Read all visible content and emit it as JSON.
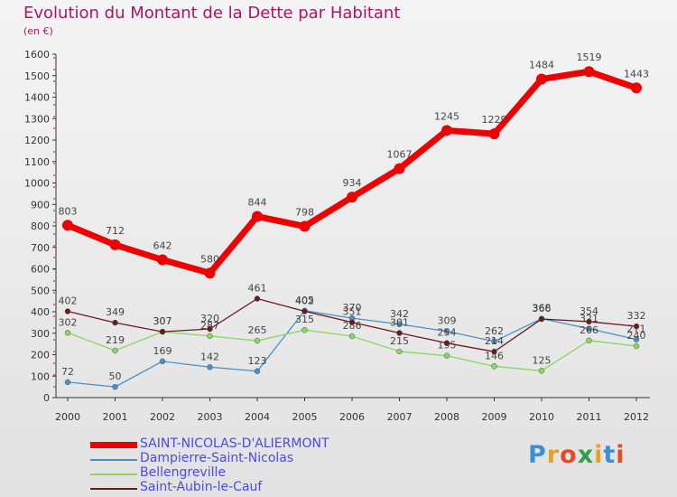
{
  "title": "Evolution du Montant de la Dette par Habitant",
  "subtitle": "(en €)",
  "brand": {
    "text": "Proxiti",
    "colors": [
      "#3a8fd8",
      "#e8a02a",
      "#e34b2a",
      "#2fa04a",
      "#e8a02a",
      "#3a8fd8",
      "#e34b2a"
    ]
  },
  "chart_data": {
    "type": "line",
    "x": [
      "2000",
      "2001",
      "2002",
      "2003",
      "2004",
      "2005",
      "2006",
      "2007",
      "2008",
      "2009",
      "2010",
      "2011",
      "2012"
    ],
    "ylim": [
      0,
      1600
    ],
    "yticks": [
      0,
      100,
      200,
      300,
      400,
      500,
      600,
      700,
      800,
      900,
      1000,
      1100,
      1200,
      1300,
      1400,
      1500,
      1600
    ],
    "grid": false,
    "legend_position": "bottom",
    "series": [
      {
        "name": "SAINT-NICOLAS-D'ALIERMONT",
        "color": "#ee0000",
        "values": [
          803,
          712,
          642,
          580,
          844,
          798,
          934,
          1067,
          1245,
          1229,
          1484,
          1519,
          1443
        ],
        "labels": [
          "803",
          "712",
          "642",
          "580",
          "844",
          "798",
          "934",
          "1067",
          "1245",
          "1229",
          "1484",
          "1519",
          "1443"
        ]
      },
      {
        "name": "Dampierre-Saint-Nicolas",
        "color": "#4a90c8",
        "values": [
          72,
          50,
          169,
          142,
          123,
          405,
          370,
          342,
          309,
          262,
          368,
          321,
          271
        ],
        "labels": [
          "72",
          "50",
          "169",
          "142",
          "123",
          "405",
          "370",
          "342",
          "309",
          "262",
          "368",
          "321",
          "271"
        ]
      },
      {
        "name": "Bellengreville",
        "color": "#88d860",
        "values": [
          302,
          219,
          307,
          287,
          265,
          315,
          286,
          215,
          195,
          146,
          125,
          266,
          240
        ],
        "labels": [
          "302",
          "219",
          "307",
          "287",
          "265",
          "315",
          "286",
          "215",
          "195",
          "146",
          "125",
          "266",
          "240"
        ]
      },
      {
        "name": "Saint-Aubin-le-Cauf",
        "color": "#6a1a22",
        "values": [
          402,
          349,
          307,
          320,
          461,
          402,
          351,
          301,
          254,
          214,
          366,
          354,
          332
        ],
        "labels": [
          "402",
          "349",
          "307",
          "320",
          "461",
          "402",
          "351",
          "301",
          "254",
          "214",
          "366",
          "354",
          "332"
        ]
      }
    ]
  }
}
